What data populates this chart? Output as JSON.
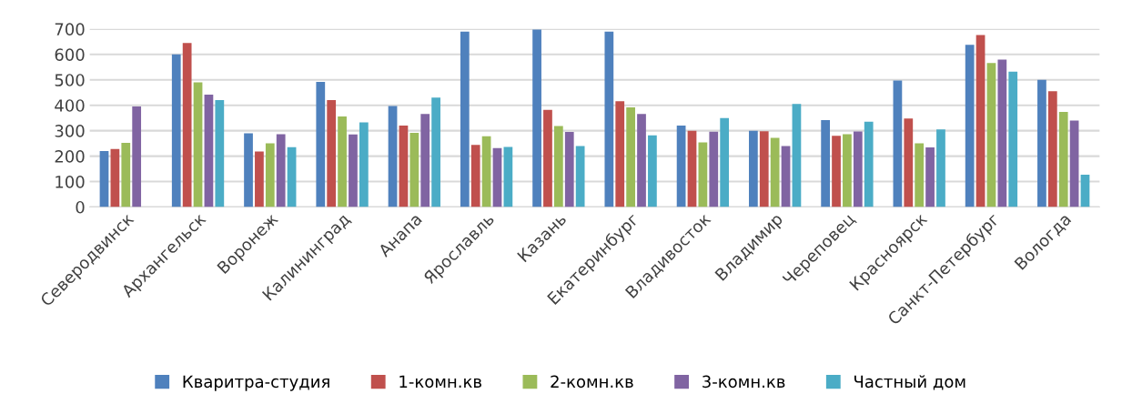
{
  "chart_data": {
    "type": "bar",
    "categories": [
      "Северодвинск",
      "Архангельск",
      "Воронеж",
      "Калининград",
      "Анапа",
      "Ярославль",
      "Казань",
      "Екатеринбург",
      "Владивосток",
      "Владимир",
      "Череповец",
      "Красноярск",
      "Санкт-Петербург",
      "Вологда"
    ],
    "series": [
      {
        "name": "Кваритра-студия",
        "color": "#4f81bd",
        "values": [
          220,
          600,
          290,
          492,
          397,
          690,
          698,
          690,
          320,
          300,
          342,
          497,
          638,
          500
        ]
      },
      {
        "name": "1-комн.кв",
        "color": "#c0504d",
        "values": [
          228,
          645,
          218,
          420,
          320,
          244,
          382,
          416,
          300,
          298,
          280,
          348,
          676,
          455
        ]
      },
      {
        "name": "2-комн.кв",
        "color": "#9bbb59",
        "values": [
          252,
          490,
          250,
          356,
          292,
          278,
          318,
          392,
          254,
          272,
          286,
          250,
          566,
          374
        ]
      },
      {
        "name": "3-комн.кв",
        "color": "#8064a2",
        "values": [
          395,
          442,
          286,
          285,
          366,
          232,
          295,
          366,
          296,
          240,
          297,
          234,
          580,
          340
        ]
      },
      {
        "name": "Частный дом",
        "color": "#4bacc6",
        "values": [
          null,
          420,
          235,
          333,
          430,
          236,
          240,
          282,
          350,
          405,
          335,
          305,
          532,
          127
        ]
      }
    ],
    "ylim": [
      0,
      700
    ],
    "yticks": [
      0,
      100,
      200,
      300,
      400,
      500,
      600,
      700
    ],
    "grid": "y",
    "legend": "bottom"
  }
}
